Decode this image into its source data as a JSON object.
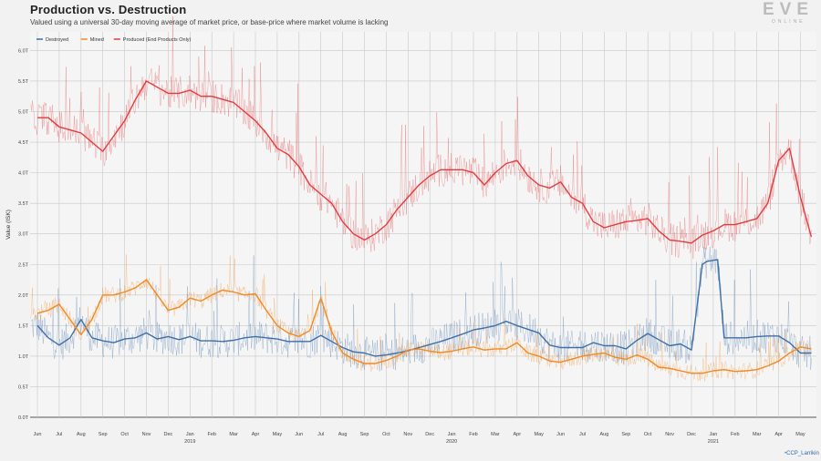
{
  "header": {
    "title": "Production vs. Destruction",
    "subtitle": "Valued using a universal 30-day moving average of market price, or base-price where market volume is lacking"
  },
  "logo": {
    "main": "EVE",
    "sub": "ONLINE"
  },
  "credit": "CCP_Larrikin",
  "colors": {
    "destroyed": "#3f6fa8",
    "mined": "#f08a24",
    "produced": "#e23c3f",
    "grid": "#c8c8c8"
  },
  "chart_data": {
    "type": "line",
    "ylabel": "Value (ISK)",
    "ylim": [
      0,
      6.2
    ],
    "yticks": [
      {
        "v": 0,
        "label": "0.0T"
      },
      {
        "v": 0.5,
        "label": "0.5T"
      },
      {
        "v": 1.0,
        "label": "1.0T"
      },
      {
        "v": 1.5,
        "label": "1.5T"
      },
      {
        "v": 2.0,
        "label": "2.0T"
      },
      {
        "v": 2.5,
        "label": "2.5T"
      },
      {
        "v": 3.0,
        "label": "3.0T"
      },
      {
        "v": 3.5,
        "label": "3.5T"
      },
      {
        "v": 4.0,
        "label": "4.0T"
      },
      {
        "v": 4.5,
        "label": "4.5T"
      },
      {
        "v": 5.0,
        "label": "5.0T"
      },
      {
        "v": 5.5,
        "label": "5.5T"
      },
      {
        "v": 6.0,
        "label": "6.0T"
      }
    ],
    "xticks": [
      {
        "m": 0,
        "label": "Jun"
      },
      {
        "m": 1,
        "label": "Jul"
      },
      {
        "m": 2,
        "label": "Aug"
      },
      {
        "m": 3,
        "label": "Sep"
      },
      {
        "m": 4,
        "label": "Oct"
      },
      {
        "m": 5,
        "label": "Nov"
      },
      {
        "m": 6,
        "label": "Dec"
      },
      {
        "m": 7,
        "label": "Jan"
      },
      {
        "m": 8,
        "label": "Feb"
      },
      {
        "m": 9,
        "label": "Mar"
      },
      {
        "m": 10,
        "label": "Apr"
      },
      {
        "m": 11,
        "label": "May"
      },
      {
        "m": 12,
        "label": "Jun"
      },
      {
        "m": 13,
        "label": "Jul"
      },
      {
        "m": 14,
        "label": "Aug"
      },
      {
        "m": 15,
        "label": "Sep"
      },
      {
        "m": 16,
        "label": "Oct"
      },
      {
        "m": 17,
        "label": "Nov"
      },
      {
        "m": 18,
        "label": "Dec"
      },
      {
        "m": 19,
        "label": "Jan"
      },
      {
        "m": 20,
        "label": "Feb"
      },
      {
        "m": 21,
        "label": "Mar"
      },
      {
        "m": 22,
        "label": "Apr"
      },
      {
        "m": 23,
        "label": "May"
      },
      {
        "m": 24,
        "label": "Jun"
      },
      {
        "m": 25,
        "label": "Jul"
      },
      {
        "m": 26,
        "label": "Aug"
      },
      {
        "m": 27,
        "label": "Sep"
      },
      {
        "m": 28,
        "label": "Oct"
      },
      {
        "m": 29,
        "label": "Nov"
      },
      {
        "m": 30,
        "label": "Dec"
      },
      {
        "m": 31,
        "label": "Jan"
      },
      {
        "m": 32,
        "label": "Feb"
      },
      {
        "m": 33,
        "label": "Mar"
      },
      {
        "m": 34,
        "label": "Apr"
      },
      {
        "m": 35,
        "label": "May"
      }
    ],
    "year_labels": [
      {
        "m": 7,
        "label": "2019"
      },
      {
        "m": 19,
        "label": "2020"
      },
      {
        "m": 31,
        "label": "2021"
      }
    ],
    "legend": {
      "placement": "top-left"
    },
    "grid": true,
    "series": [
      {
        "name": "Destroyed",
        "color": "#3f6fa8",
        "x": [
          0,
          0.5,
          1,
          1.5,
          2,
          2.5,
          3,
          3.5,
          4,
          4.5,
          5,
          5.5,
          6,
          6.5,
          7,
          7.5,
          8,
          8.5,
          9,
          9.5,
          10,
          10.5,
          11,
          11.5,
          12,
          12.5,
          13,
          13.5,
          14,
          14.5,
          15,
          15.5,
          16,
          16.5,
          17,
          17.5,
          18,
          18.5,
          19,
          19.5,
          20,
          20.5,
          21,
          21.5,
          22,
          22.5,
          23,
          23.5,
          24,
          24.5,
          25,
          25.5,
          26,
          26.5,
          27,
          27.5,
          28,
          28.5,
          29,
          29.5,
          30,
          30.5,
          30.7,
          31.2,
          31.5,
          32,
          32.5,
          33,
          33.5,
          34,
          34.5,
          35,
          35.5
        ],
        "values": [
          1.5,
          1.3,
          1.18,
          1.3,
          1.6,
          1.3,
          1.25,
          1.22,
          1.28,
          1.3,
          1.38,
          1.28,
          1.32,
          1.27,
          1.32,
          1.25,
          1.25,
          1.24,
          1.26,
          1.3,
          1.32,
          1.3,
          1.28,
          1.24,
          1.24,
          1.24,
          1.34,
          1.24,
          1.14,
          1.07,
          1.05,
          1.0,
          1.02,
          1.05,
          1.09,
          1.14,
          1.19,
          1.24,
          1.3,
          1.36,
          1.43,
          1.46,
          1.5,
          1.57,
          1.5,
          1.44,
          1.38,
          1.18,
          1.14,
          1.14,
          1.14,
          1.22,
          1.17,
          1.17,
          1.12,
          1.26,
          1.37,
          1.27,
          1.17,
          1.2,
          1.1,
          2.5,
          2.55,
          2.58,
          1.3,
          1.3,
          1.3,
          1.32,
          1.33,
          1.33,
          1.22,
          1.05,
          1.05
        ]
      },
      {
        "name": "Mined",
        "color": "#f08a24",
        "x": [
          0,
          0.5,
          1,
          1.5,
          2,
          2.5,
          3,
          3.5,
          4,
          4.5,
          5,
          5.5,
          6,
          6.5,
          7,
          7.5,
          8,
          8.5,
          9,
          9.5,
          10,
          10.5,
          11,
          11.5,
          12,
          12.5,
          13,
          13.5,
          14,
          14.5,
          15,
          15.5,
          16,
          16.5,
          17,
          17.5,
          18,
          18.5,
          19,
          19.5,
          20,
          20.5,
          21,
          21.5,
          22,
          22.5,
          23,
          23.5,
          24,
          24.5,
          25,
          25.5,
          26,
          26.5,
          27,
          27.5,
          28,
          28.5,
          29,
          29.5,
          30,
          30.5,
          31,
          31.5,
          32,
          32.5,
          33,
          33.5,
          34,
          34.5,
          35,
          35.5
        ],
        "values": [
          1.7,
          1.75,
          1.85,
          1.6,
          1.35,
          1.6,
          2.0,
          2.0,
          2.05,
          2.12,
          2.25,
          2.0,
          1.75,
          1.8,
          1.95,
          1.9,
          2.0,
          2.08,
          2.05,
          2.0,
          2.02,
          1.75,
          1.5,
          1.38,
          1.32,
          1.42,
          1.95,
          1.4,
          1.05,
          0.95,
          0.88,
          0.88,
          0.93,
          1.0,
          1.1,
          1.12,
          1.08,
          1.06,
          1.08,
          1.12,
          1.15,
          1.1,
          1.12,
          1.12,
          1.22,
          1.05,
          1.0,
          0.92,
          0.9,
          0.95,
          1.0,
          1.03,
          1.05,
          0.98,
          0.95,
          1.02,
          0.95,
          0.82,
          0.8,
          0.76,
          0.72,
          0.72,
          0.76,
          0.78,
          0.75,
          0.76,
          0.78,
          0.84,
          0.92,
          1.05,
          1.15,
          1.12
        ]
      },
      {
        "name": "Produced (End Products Only)",
        "color": "#e23c3f",
        "x": [
          0,
          0.5,
          1,
          1.5,
          2,
          2.5,
          3,
          3.5,
          4,
          4.5,
          5,
          5.5,
          6,
          6.5,
          7,
          7.5,
          8,
          8.5,
          9,
          9.5,
          10,
          10.5,
          11,
          11.5,
          12,
          12.5,
          13,
          13.5,
          14,
          14.5,
          15,
          15.5,
          16,
          16.5,
          17,
          17.5,
          18,
          18.5,
          19,
          19.5,
          20,
          20.5,
          21,
          21.5,
          22,
          22.5,
          23,
          23.5,
          24,
          24.5,
          25,
          25.5,
          26,
          26.5,
          27,
          27.5,
          28,
          28.5,
          29,
          29.5,
          30,
          30.5,
          31,
          31.5,
          32,
          32.5,
          33,
          33.5,
          34,
          34.5,
          35,
          35.5
        ],
        "values": [
          4.9,
          4.9,
          4.75,
          4.7,
          4.65,
          4.5,
          4.35,
          4.6,
          4.85,
          5.2,
          5.5,
          5.4,
          5.3,
          5.3,
          5.35,
          5.25,
          5.25,
          5.2,
          5.15,
          5.0,
          4.85,
          4.65,
          4.4,
          4.3,
          4.1,
          3.8,
          3.65,
          3.5,
          3.2,
          3.0,
          2.9,
          3.0,
          3.15,
          3.4,
          3.6,
          3.8,
          3.95,
          4.05,
          4.05,
          4.05,
          4.0,
          3.8,
          4.0,
          4.15,
          4.2,
          3.95,
          3.8,
          3.75,
          3.85,
          3.6,
          3.5,
          3.2,
          3.1,
          3.15,
          3.2,
          3.22,
          3.25,
          3.05,
          2.9,
          2.88,
          2.85,
          2.98,
          3.05,
          3.15,
          3.15,
          3.2,
          3.25,
          3.5,
          4.2,
          4.4,
          3.6,
          2.95
        ]
      }
    ]
  }
}
